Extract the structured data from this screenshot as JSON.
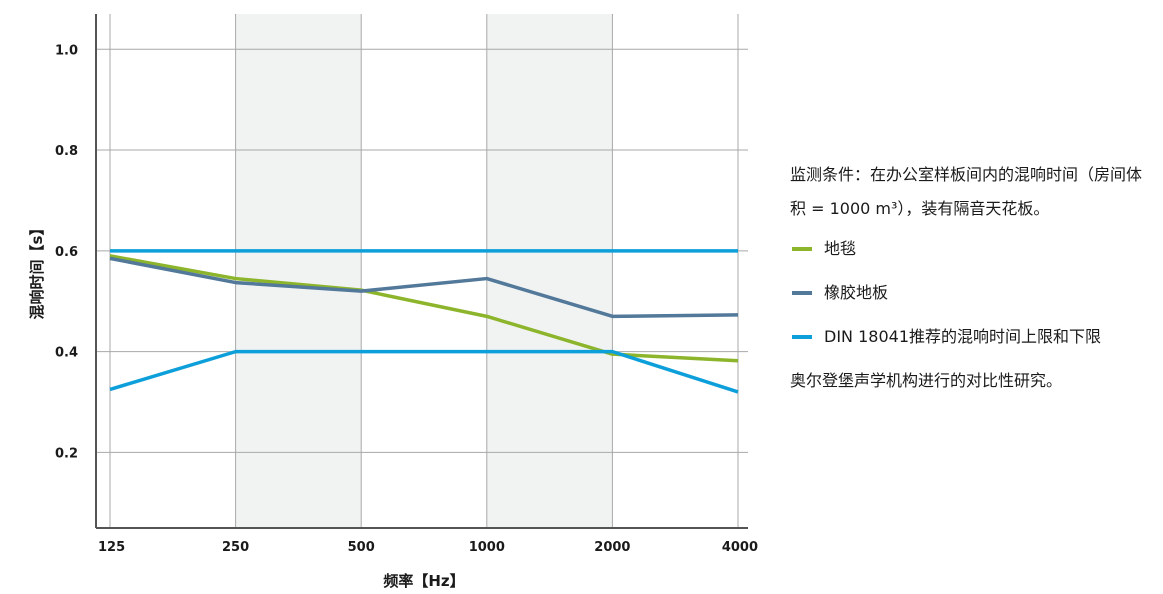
{
  "chart_data": {
    "type": "line",
    "categories": [
      "125",
      "250",
      "500",
      "1000",
      "2000",
      "4000"
    ],
    "xlabel": "频率【Hz】",
    "ylabel": "混响时间【s】",
    "ylim": [
      0.05,
      1.07
    ],
    "yticks": [
      0.2,
      0.4,
      0.6,
      0.8,
      1.0
    ],
    "ytick_labels": [
      "0.2",
      "0.4",
      "0.6",
      "0.8",
      "1.0"
    ],
    "grid": true,
    "shaded_bands": [
      [
        1,
        2
      ],
      [
        3,
        4
      ]
    ],
    "series": [
      {
        "name": "地毯",
        "color": "#8db52c",
        "values": [
          0.59,
          0.545,
          0.522,
          0.47,
          0.395,
          0.382
        ]
      },
      {
        "name": "橡胶地板",
        "color": "#52789a",
        "values": [
          0.585,
          0.537,
          0.52,
          0.545,
          0.47,
          0.473
        ]
      },
      {
        "name": "DIN 18041推荐的混响时间上限",
        "color": "#0d9fd9",
        "values": [
          0.6,
          0.6,
          0.6,
          0.6,
          0.6,
          0.6
        ]
      },
      {
        "name": "DIN 18041推荐的混响时间下限",
        "color": "#0d9fd9",
        "values": [
          0.325,
          0.4,
          0.4,
          0.4,
          0.4,
          0.32
        ]
      }
    ]
  },
  "legend": {
    "condition": "监测条件：在办公室样板间内的混响时间（房间体积 = 1000 m³），装有隔音天花板。",
    "items": [
      {
        "label": "地毯",
        "color": "#8db52c"
      },
      {
        "label": "橡胶地板",
        "color": "#52789a"
      },
      {
        "label": "DIN 18041推荐的混响时间上限和下限",
        "color": "#0d9fd9"
      }
    ],
    "note": "奥尔登堡声学机构进行的对比性研究。"
  }
}
